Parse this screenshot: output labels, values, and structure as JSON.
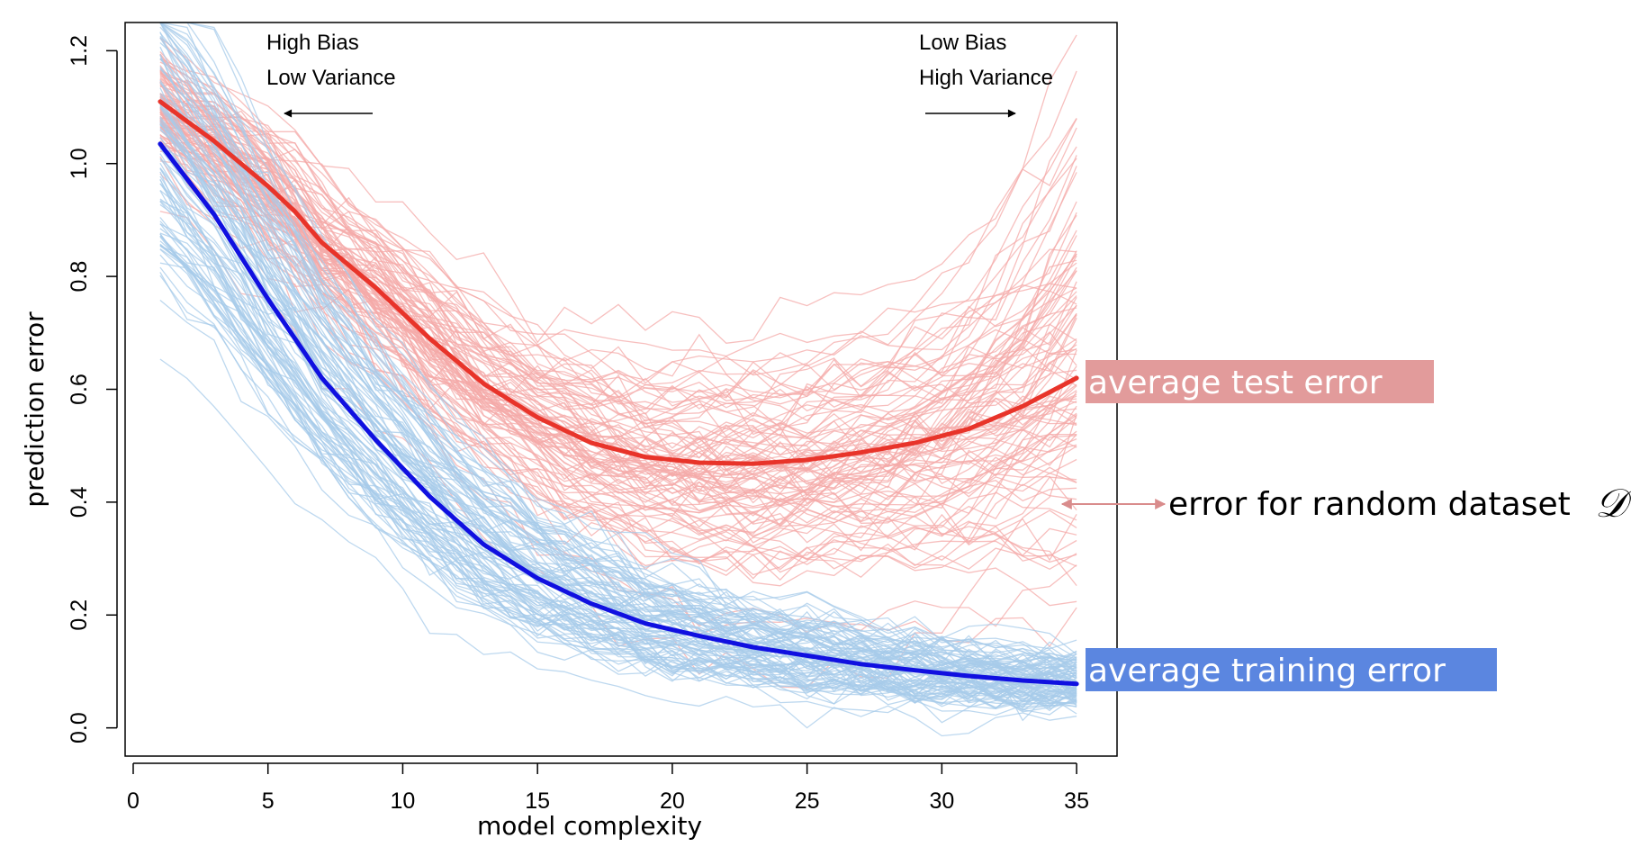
{
  "chart_data": {
    "type": "line",
    "xlabel": "model complexity",
    "ylabel": "prediction error",
    "xlim": [
      -0.3,
      36.5
    ],
    "ylim": [
      -0.05,
      1.25
    ],
    "x_ticks": [
      0,
      5,
      10,
      15,
      20,
      25,
      30,
      35
    ],
    "y_ticks": [
      0.0,
      0.2,
      0.4,
      0.6,
      0.8,
      1.0,
      1.2
    ],
    "y_tick_labels": [
      "0.0",
      "0.2",
      "0.4",
      "0.6",
      "0.8",
      "1.0",
      "1.2"
    ],
    "grid": false,
    "annotations": {
      "left_top": "High Bias",
      "left_bottom": "Low Variance",
      "right_top": "Low Bias",
      "right_bottom": "High Variance"
    },
    "series": [
      {
        "name": "average test error",
        "color": "#e8342a",
        "badge_color": "#e29b9b",
        "x": [
          1,
          3,
          5,
          6,
          7,
          9,
          11,
          13,
          15,
          17,
          19,
          21,
          23,
          25,
          27,
          29,
          31,
          33,
          35
        ],
        "values": [
          1.11,
          1.04,
          0.96,
          0.915,
          0.86,
          0.78,
          0.69,
          0.61,
          0.55,
          0.505,
          0.48,
          0.47,
          0.468,
          0.475,
          0.488,
          0.505,
          0.53,
          0.57,
          0.62
        ]
      },
      {
        "name": "average training error",
        "color": "#1010e0",
        "badge_color": "#5b86e0",
        "x": [
          1,
          3,
          5,
          7,
          9,
          11,
          13,
          15,
          17,
          19,
          21,
          23,
          25,
          27,
          29,
          31,
          33,
          35
        ],
        "values": [
          1.035,
          0.91,
          0.76,
          0.62,
          0.51,
          0.41,
          0.325,
          0.265,
          0.22,
          0.185,
          0.163,
          0.143,
          0.128,
          0.113,
          0.102,
          0.092,
          0.084,
          0.078
        ]
      }
    ],
    "realization_colors": {
      "test": "#f4a9a8",
      "train": "#a7cbe9"
    },
    "dataset_label": "error for random dataset",
    "dataset_symbol": "𝒟",
    "dataset_arrow_color": "#d98c8c"
  }
}
